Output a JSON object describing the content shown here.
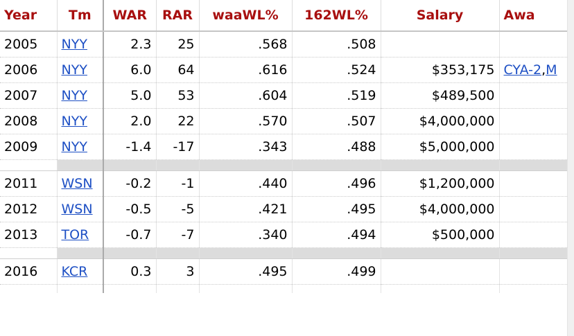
{
  "headers": {
    "year": "Year",
    "tm": "Tm",
    "war": "WAR",
    "rar": "RAR",
    "waawl": "waaWL%",
    "wl162": "162WL%",
    "salary": "Salary",
    "awards": "Awa"
  },
  "rows": [
    {
      "year": "2005",
      "tm": "NYY",
      "war": "2.3",
      "rar": "25",
      "waawl": ".568",
      "wl162": ".508",
      "salary": "",
      "award_a": "",
      "award_sep": "",
      "award_b": ""
    },
    {
      "year": "2006",
      "tm": "NYY",
      "war": "6.0",
      "rar": "64",
      "waawl": ".616",
      "wl162": ".524",
      "salary": "$353,175",
      "award_a": "CYA-2",
      "award_sep": ",",
      "award_b": "M"
    },
    {
      "year": "2007",
      "tm": "NYY",
      "war": "5.0",
      "rar": "53",
      "waawl": ".604",
      "wl162": ".519",
      "salary": "$489,500",
      "award_a": "",
      "award_sep": "",
      "award_b": ""
    },
    {
      "year": "2008",
      "tm": "NYY",
      "war": "2.0",
      "rar": "22",
      "waawl": ".570",
      "wl162": ".507",
      "salary": "$4,000,000",
      "award_a": "",
      "award_sep": "",
      "award_b": ""
    },
    {
      "year": "2009",
      "tm": "NYY",
      "war": "-1.4",
      "rar": "-17",
      "waawl": ".343",
      "wl162": ".488",
      "salary": "$5,000,000",
      "award_a": "",
      "award_sep": "",
      "award_b": ""
    },
    {
      "year": "2011",
      "tm": "WSN",
      "war": "-0.2",
      "rar": "-1",
      "waawl": ".440",
      "wl162": ".496",
      "salary": "$1,200,000",
      "award_a": "",
      "award_sep": "",
      "award_b": ""
    },
    {
      "year": "2012",
      "tm": "WSN",
      "war": "-0.5",
      "rar": "-5",
      "waawl": ".421",
      "wl162": ".495",
      "salary": "$4,000,000",
      "award_a": "",
      "award_sep": "",
      "award_b": ""
    },
    {
      "year": "2013",
      "tm": "TOR",
      "war": "-0.7",
      "rar": "-7",
      "waawl": ".340",
      "wl162": ".494",
      "salary": "$500,000",
      "award_a": "",
      "award_sep": "",
      "award_b": ""
    },
    {
      "year": "2016",
      "tm": "KCR",
      "war": "0.3",
      "rar": "3",
      "waawl": ".495",
      "wl162": ".499",
      "salary": "",
      "award_a": "",
      "award_sep": "",
      "award_b": ""
    }
  ]
}
